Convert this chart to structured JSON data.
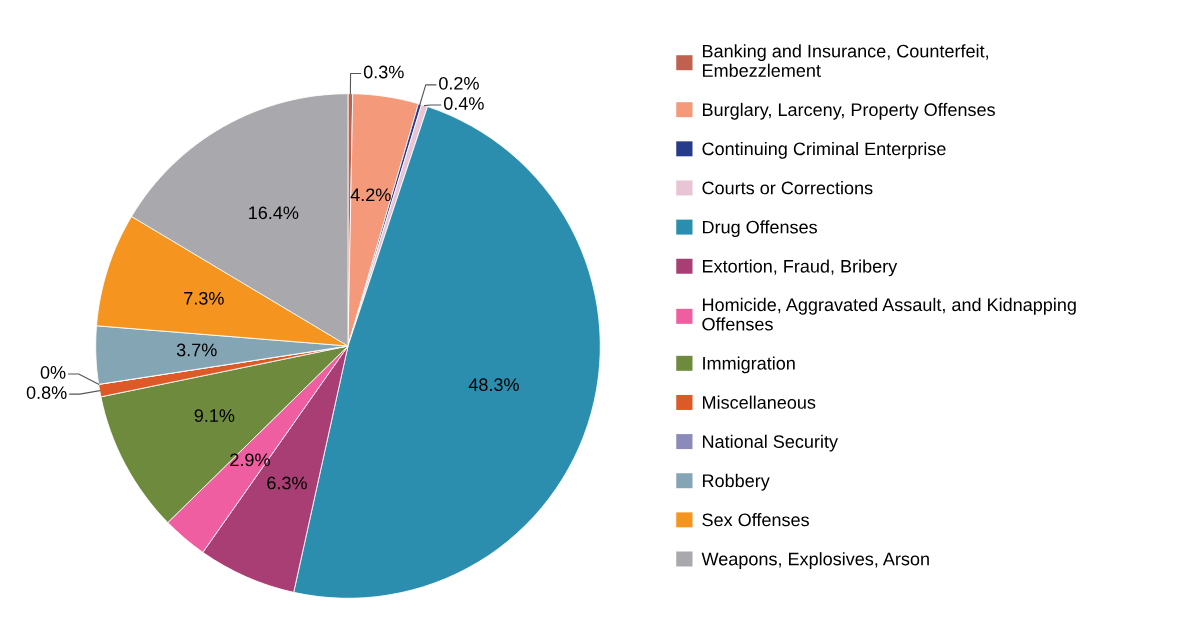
{
  "chart_data": {
    "type": "pie",
    "categories": [
      "Banking and Insurance, Counterfeit, Embezzlement",
      "Burglary, Larceny, Property Offenses",
      "Continuing Criminal Enterprise",
      "Courts or Corrections",
      "Drug Offenses",
      "Extortion, Fraud, Bribery",
      "Homicide, Aggravated Assault, and Kidnapping Offenses",
      "Immigration",
      "Miscellaneous",
      "National Security",
      "Robbery",
      "Sex Offenses",
      "Weapons, Explosives, Arson"
    ],
    "values": [
      0.3,
      4.2,
      0.2,
      0.4,
      48.3,
      6.3,
      2.9,
      9.1,
      0.8,
      0,
      3.7,
      7.3,
      16.4
    ],
    "colors": [
      "#c0604e",
      "#f4997a",
      "#253c8c",
      "#e8c4d4",
      "#2b8eae",
      "#a83e74",
      "#ee5ea0",
      "#6e8b3d",
      "#dd5a28",
      "#8b8ab8",
      "#84a5b4",
      "#f5951f",
      "#a9a9ad"
    ],
    "value_labels": [
      "0.3%",
      "4.2%",
      "0.2%",
      "0.4%",
      "48.3%",
      "6.3%",
      "2.9%",
      "9.1%",
      "0.8%",
      "0%",
      "3.7%",
      "7.3%",
      "16.4%"
    ],
    "legend": "right"
  }
}
